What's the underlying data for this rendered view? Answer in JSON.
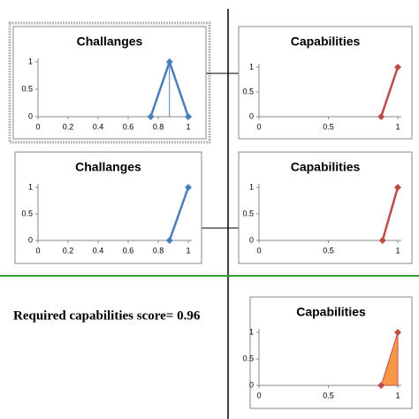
{
  "annotation": "Required capabilities score= 0.96",
  "chart_data": [
    {
      "type": "line",
      "title": "Challanges",
      "x": [
        0.75,
        0.875,
        1
      ],
      "values": [
        0,
        1,
        0
      ],
      "color": "#4a7ebb",
      "drop_line": true,
      "xlim": [
        0,
        1
      ],
      "xticks": [
        0,
        0.2,
        0.4,
        0.6,
        0.8,
        1
      ],
      "ylim": [
        0,
        1
      ],
      "yticks": [
        0,
        0.5,
        1
      ]
    },
    {
      "type": "line",
      "title": "Capabilities",
      "x": [
        0.88,
        1
      ],
      "values": [
        0,
        1
      ],
      "color": "#be4b48",
      "xlim": [
        0,
        1
      ],
      "xticks": [
        0,
        0.5,
        1
      ],
      "ylim": [
        0,
        1
      ],
      "yticks": [
        0,
        0.5,
        1
      ]
    },
    {
      "type": "line",
      "title": "Challanges",
      "x": [
        0.875,
        1
      ],
      "values": [
        0,
        1
      ],
      "color": "#4a7ebb",
      "xlim": [
        0,
        1
      ],
      "xticks": [
        0,
        0.2,
        0.4,
        0.6,
        0.8,
        1
      ],
      "ylim": [
        0,
        1
      ],
      "yticks": [
        0,
        0.5,
        1
      ]
    },
    {
      "type": "line",
      "title": "Capabilities",
      "x": [
        0.89,
        1
      ],
      "values": [
        0,
        1
      ],
      "color": "#be4b48",
      "xlim": [
        0,
        1
      ],
      "xticks": [
        0,
        0.5,
        1
      ],
      "ylim": [
        0,
        1
      ],
      "yticks": [
        0,
        0.5,
        1
      ]
    },
    {
      "type": "area",
      "title": "Capabilities",
      "x": [
        0.88,
        1
      ],
      "values": [
        0,
        1
      ],
      "color": "#f79646",
      "xlim": [
        0,
        1
      ],
      "xticks": [
        0,
        0.5,
        1
      ],
      "ylim": [
        0,
        1
      ],
      "yticks": [
        0,
        0.5,
        1
      ]
    }
  ]
}
